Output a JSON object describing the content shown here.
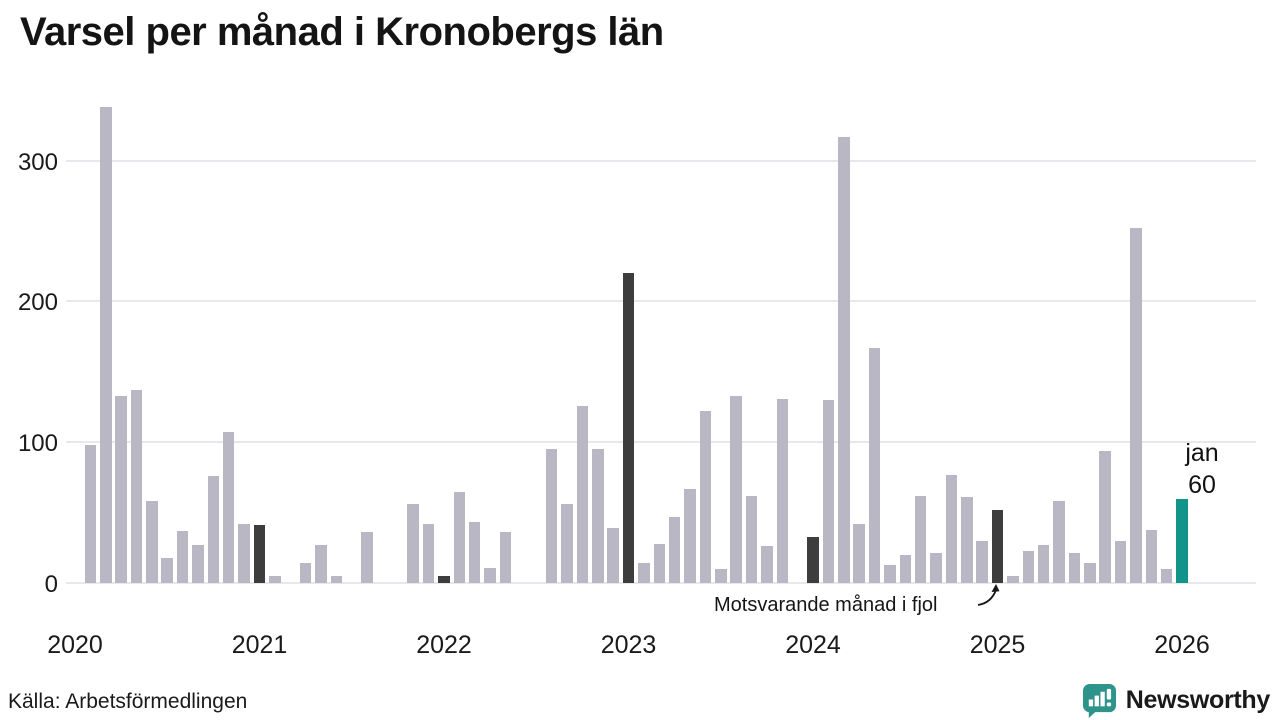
{
  "page": {
    "title": "Varsel per månad i Kronobergs län",
    "source": "Källa: Arbetsförmedlingen"
  },
  "branding": {
    "name": "Newsworthy",
    "icon": "newsworthy-speech-bubble-chart-icon",
    "color": "#2e948b"
  },
  "chart_data": {
    "type": "bar",
    "title": "Varsel per månad i Kronobergs län",
    "xlabel": "",
    "ylabel": "",
    "ylim": [
      0,
      350
    ],
    "yticks": [
      0,
      100,
      200,
      300
    ],
    "year_ticks": [
      "2020",
      "2021",
      "2022",
      "2023",
      "2024",
      "2025",
      "2026"
    ],
    "grid": "horizontal",
    "legend": "none",
    "annotation": {
      "text": "Motsvarande månad i fjol",
      "target_month": "2025-01"
    },
    "last_label": {
      "month": "jan",
      "value": "60"
    },
    "colors": {
      "bar": "#b9b7c4",
      "highlight": "#3d3d3d",
      "accent": "#12948a",
      "grid": "#e7e7ee"
    },
    "months": [
      {
        "m": "2020-02",
        "v": 98,
        "k": "n"
      },
      {
        "m": "2020-03",
        "v": 338,
        "k": "n"
      },
      {
        "m": "2020-04",
        "v": 133,
        "k": "n"
      },
      {
        "m": "2020-05",
        "v": 137,
        "k": "n"
      },
      {
        "m": "2020-06",
        "v": 58,
        "k": "n"
      },
      {
        "m": "2020-07",
        "v": 18,
        "k": "n"
      },
      {
        "m": "2020-08",
        "v": 37,
        "k": "n"
      },
      {
        "m": "2020-09",
        "v": 27,
        "k": "n"
      },
      {
        "m": "2020-10",
        "v": 76,
        "k": "n"
      },
      {
        "m": "2020-11",
        "v": 107,
        "k": "n"
      },
      {
        "m": "2020-12",
        "v": 42,
        "k": "n"
      },
      {
        "m": "2021-01",
        "v": 41,
        "k": "h"
      },
      {
        "m": "2021-02",
        "v": 5,
        "k": "n"
      },
      {
        "m": "2021-03",
        "v": 0,
        "k": "n"
      },
      {
        "m": "2021-04",
        "v": 14,
        "k": "n"
      },
      {
        "m": "2021-05",
        "v": 27,
        "k": "n"
      },
      {
        "m": "2021-06",
        "v": 5,
        "k": "n"
      },
      {
        "m": "2021-07",
        "v": 0,
        "k": "n"
      },
      {
        "m": "2021-08",
        "v": 36,
        "k": "n"
      },
      {
        "m": "2021-09",
        "v": 0,
        "k": "n"
      },
      {
        "m": "2021-10",
        "v": 0,
        "k": "n"
      },
      {
        "m": "2021-11",
        "v": 56,
        "k": "n"
      },
      {
        "m": "2021-12",
        "v": 42,
        "k": "n"
      },
      {
        "m": "2022-01",
        "v": 5,
        "k": "h"
      },
      {
        "m": "2022-02",
        "v": 65,
        "k": "n"
      },
      {
        "m": "2022-03",
        "v": 43,
        "k": "n"
      },
      {
        "m": "2022-04",
        "v": 11,
        "k": "n"
      },
      {
        "m": "2022-05",
        "v": 36,
        "k": "n"
      },
      {
        "m": "2022-06",
        "v": 0,
        "k": "n"
      },
      {
        "m": "2022-07",
        "v": 0,
        "k": "n"
      },
      {
        "m": "2022-08",
        "v": 95,
        "k": "n"
      },
      {
        "m": "2022-09",
        "v": 56,
        "k": "n"
      },
      {
        "m": "2022-10",
        "v": 126,
        "k": "n"
      },
      {
        "m": "2022-11",
        "v": 95,
        "k": "n"
      },
      {
        "m": "2022-12",
        "v": 39,
        "k": "n"
      },
      {
        "m": "2023-01",
        "v": 220,
        "k": "h"
      },
      {
        "m": "2023-02",
        "v": 14,
        "k": "n"
      },
      {
        "m": "2023-03",
        "v": 28,
        "k": "n"
      },
      {
        "m": "2023-04",
        "v": 47,
        "k": "n"
      },
      {
        "m": "2023-05",
        "v": 67,
        "k": "n"
      },
      {
        "m": "2023-06",
        "v": 122,
        "k": "n"
      },
      {
        "m": "2023-07",
        "v": 10,
        "k": "n"
      },
      {
        "m": "2023-08",
        "v": 133,
        "k": "n"
      },
      {
        "m": "2023-09",
        "v": 62,
        "k": "n"
      },
      {
        "m": "2023-10",
        "v": 26,
        "k": "n"
      },
      {
        "m": "2023-11",
        "v": 131,
        "k": "n"
      },
      {
        "m": "2023-12",
        "v": 0,
        "k": "n"
      },
      {
        "m": "2024-01",
        "v": 33,
        "k": "h"
      },
      {
        "m": "2024-02",
        "v": 130,
        "k": "n"
      },
      {
        "m": "2024-03",
        "v": 317,
        "k": "n"
      },
      {
        "m": "2024-04",
        "v": 42,
        "k": "n"
      },
      {
        "m": "2024-05",
        "v": 167,
        "k": "n"
      },
      {
        "m": "2024-06",
        "v": 13,
        "k": "n"
      },
      {
        "m": "2024-07",
        "v": 20,
        "k": "n"
      },
      {
        "m": "2024-08",
        "v": 62,
        "k": "n"
      },
      {
        "m": "2024-09",
        "v": 21,
        "k": "n"
      },
      {
        "m": "2024-10",
        "v": 77,
        "k": "n"
      },
      {
        "m": "2024-11",
        "v": 61,
        "k": "n"
      },
      {
        "m": "2024-12",
        "v": 30,
        "k": "n"
      },
      {
        "m": "2025-01",
        "v": 52,
        "k": "h"
      },
      {
        "m": "2025-02",
        "v": 5,
        "k": "n"
      },
      {
        "m": "2025-03",
        "v": 23,
        "k": "n"
      },
      {
        "m": "2025-04",
        "v": 27,
        "k": "n"
      },
      {
        "m": "2025-05",
        "v": 58,
        "k": "n"
      },
      {
        "m": "2025-06",
        "v": 21,
        "k": "n"
      },
      {
        "m": "2025-07",
        "v": 14,
        "k": "n"
      },
      {
        "m": "2025-08",
        "v": 94,
        "k": "n"
      },
      {
        "m": "2025-09",
        "v": 30,
        "k": "n"
      },
      {
        "m": "2025-10",
        "v": 252,
        "k": "n"
      },
      {
        "m": "2025-11",
        "v": 38,
        "k": "n"
      },
      {
        "m": "2025-12",
        "v": 10,
        "k": "n"
      },
      {
        "m": "2026-01",
        "v": 60,
        "k": "c"
      }
    ]
  }
}
